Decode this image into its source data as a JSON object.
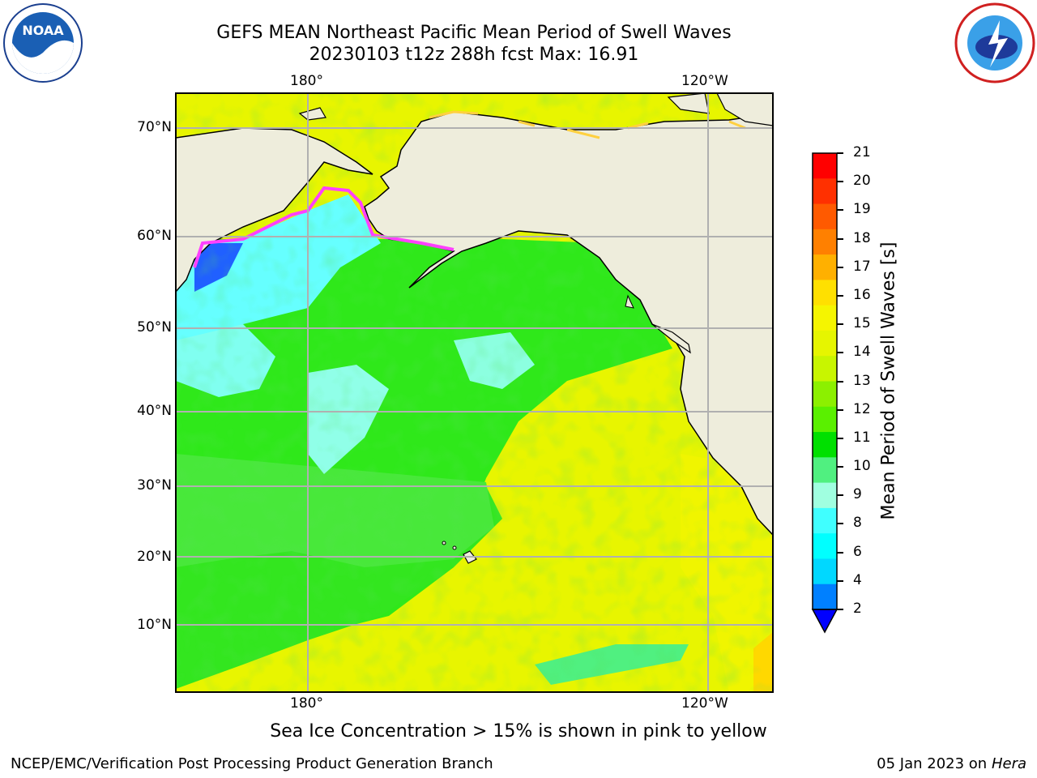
{
  "header": {
    "title_line1": "GEFS MEAN Northeast Pacific Mean Period of Swell Waves",
    "title_line2": "20230103 t12z 288h fcst   Max: 16.91"
  },
  "logos": {
    "left": "NOAA",
    "right": "National Weather Service"
  },
  "map": {
    "lon_labels_top": [
      "180°",
      "120°W"
    ],
    "lon_labels_bottom": [
      "180°",
      "120°W"
    ],
    "lat_labels": [
      "70°N",
      "60°N",
      "50°N",
      "40°N",
      "30°N",
      "20°N",
      "10°N"
    ],
    "land_color": "#eeeddc",
    "ice_colors": [
      "#ff40ff",
      "#ffb0a0",
      "#ffd040"
    ]
  },
  "colorbar": {
    "label": "Mean Period of Swell Waves [s]",
    "ticks": [
      "21",
      "20",
      "19",
      "18",
      "17",
      "16",
      "15",
      "14",
      "13",
      "12",
      "11",
      "10",
      "9",
      "8",
      "6",
      "4",
      "2"
    ],
    "colors": [
      "#ff0000",
      "#ff3000",
      "#ff5a00",
      "#ff8000",
      "#ffb000",
      "#ffe000",
      "#f5f500",
      "#e6f500",
      "#c8f500",
      "#8cf000",
      "#5af000",
      "#00e000",
      "#50f080",
      "#a0ffe0",
      "#40ffff",
      "#00ffff",
      "#00d8ff",
      "#0080ff"
    ],
    "under_color": "#0000ff"
  },
  "note": "Sea Ice Concentration > 15% is shown in pink to yellow",
  "footer": {
    "left": "NCEP/EMC/Verification Post Processing Product Generation Branch",
    "right_prefix": "05 Jan 2023 on ",
    "right_host": "Hera"
  }
}
